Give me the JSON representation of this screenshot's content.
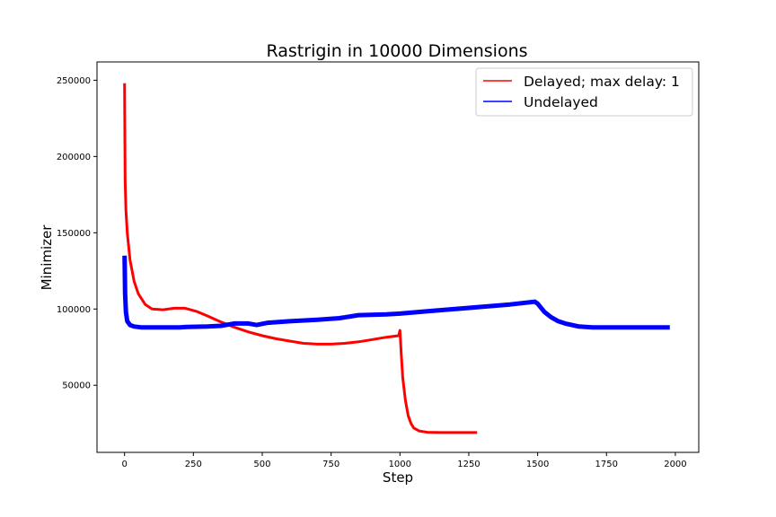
{
  "chart_data": {
    "type": "line",
    "title": "Rastrigin in 10000 Dimensions",
    "xlabel": "Step",
    "ylabel": "Minimizer",
    "xlim": [
      -100,
      2085
    ],
    "ylim": [
      6000,
      262000
    ],
    "x_ticks": [
      0,
      250,
      500,
      750,
      1000,
      1250,
      1500,
      1750,
      2000
    ],
    "y_ticks": [
      50000,
      100000,
      150000,
      200000,
      250000
    ],
    "x_tick_labels": [
      "0",
      "250",
      "500",
      "750",
      "1000",
      "1250",
      "1500",
      "1750",
      "2000"
    ],
    "y_tick_labels": [
      "50000",
      "100000",
      "150000",
      "200000",
      "250000"
    ],
    "grid": false,
    "legend_position": "top-right",
    "series": [
      {
        "name": "Delayed; max delay: 1",
        "color": "#ff0000",
        "points": [
          [
            0,
            248000
          ],
          [
            2,
            185000
          ],
          [
            5,
            165000
          ],
          [
            10,
            150000
          ],
          [
            20,
            132000
          ],
          [
            35,
            118000
          ],
          [
            50,
            110000
          ],
          [
            75,
            103000
          ],
          [
            100,
            100000
          ],
          [
            140,
            99500
          ],
          [
            180,
            100500
          ],
          [
            220,
            100500
          ],
          [
            260,
            98500
          ],
          [
            300,
            95500
          ],
          [
            350,
            91500
          ],
          [
            400,
            88000
          ],
          [
            450,
            85000
          ],
          [
            500,
            82500
          ],
          [
            550,
            80500
          ],
          [
            600,
            79000
          ],
          [
            650,
            77500
          ],
          [
            700,
            77000
          ],
          [
            750,
            77000
          ],
          [
            800,
            77500
          ],
          [
            850,
            78500
          ],
          [
            900,
            80000
          ],
          [
            950,
            81500
          ],
          [
            995,
            82500
          ],
          [
            1000,
            86000
          ],
          [
            1005,
            70000
          ],
          [
            1010,
            55000
          ],
          [
            1020,
            40000
          ],
          [
            1030,
            30000
          ],
          [
            1040,
            25000
          ],
          [
            1050,
            22000
          ],
          [
            1070,
            20000
          ],
          [
            1100,
            19200
          ],
          [
            1150,
            19000
          ],
          [
            1200,
            19000
          ],
          [
            1280,
            19000
          ]
        ]
      },
      {
        "name": "Undelayed",
        "color": "#0000ff",
        "points": [
          [
            0,
            135000
          ],
          [
            2,
            110000
          ],
          [
            5,
            98000
          ],
          [
            10,
            92000
          ],
          [
            20,
            89500
          ],
          [
            35,
            88500
          ],
          [
            60,
            88000
          ],
          [
            100,
            88000
          ],
          [
            200,
            88000
          ],
          [
            225,
            88200
          ],
          [
            300,
            88500
          ],
          [
            350,
            89000
          ],
          [
            400,
            90500
          ],
          [
            450,
            90500
          ],
          [
            480,
            89500
          ],
          [
            520,
            91000
          ],
          [
            600,
            92000
          ],
          [
            700,
            93000
          ],
          [
            780,
            94000
          ],
          [
            850,
            96000
          ],
          [
            950,
            96500
          ],
          [
            1000,
            97000
          ],
          [
            1100,
            98500
          ],
          [
            1200,
            100000
          ],
          [
            1300,
            101500
          ],
          [
            1400,
            103000
          ],
          [
            1490,
            104800
          ],
          [
            1500,
            103500
          ],
          [
            1525,
            98000
          ],
          [
            1550,
            94500
          ],
          [
            1575,
            92000
          ],
          [
            1600,
            90500
          ],
          [
            1650,
            88500
          ],
          [
            1700,
            88000
          ],
          [
            1850,
            88000
          ],
          [
            1980,
            88000
          ]
        ]
      }
    ]
  }
}
